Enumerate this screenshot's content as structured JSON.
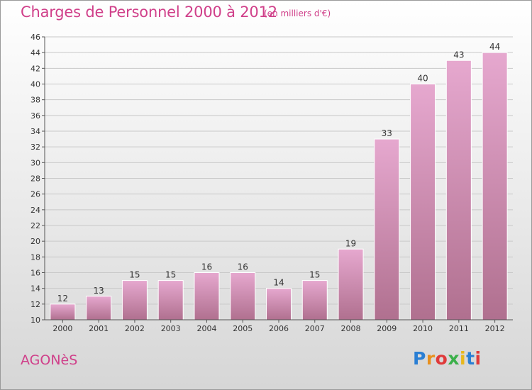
{
  "header": {
    "title": "Charges de Personnel 2000 à 2012",
    "subtitle": "(en milliers d'€)"
  },
  "footer": {
    "commune": "AGONèS",
    "brand": "Proxiti",
    "brand_letters": [
      {
        "ch": "P",
        "color": "#2a7fd4"
      },
      {
        "ch": "r",
        "color": "#e8901e"
      },
      {
        "ch": "o",
        "color": "#e03a3a"
      },
      {
        "ch": "x",
        "color": "#3bb04a"
      },
      {
        "ch": "i",
        "color": "#e8b81e"
      },
      {
        "ch": "t",
        "color": "#2a7fd4"
      },
      {
        "ch": "i",
        "color": "#e03a3a"
      }
    ]
  },
  "colors": {
    "title": "#d0408a",
    "bar_top": "#e6a8cf",
    "bar_bottom": "#b0708f",
    "bar_edge": "#ffffff",
    "grid": "#c9c9c9"
  },
  "chart_data": {
    "type": "bar",
    "title": "Charges de Personnel 2000 à 2012",
    "subtitle": "(en milliers d'€)",
    "categories": [
      "2000",
      "2001",
      "2002",
      "2003",
      "2004",
      "2005",
      "2006",
      "2007",
      "2008",
      "2009",
      "2010",
      "2011",
      "2012"
    ],
    "values": [
      12,
      13,
      15,
      15,
      16,
      16,
      14,
      15,
      19,
      33,
      40,
      43,
      44
    ],
    "ylim": [
      10,
      46
    ],
    "yticks": [
      10,
      12,
      14,
      16,
      18,
      20,
      22,
      24,
      26,
      28,
      30,
      32,
      34,
      36,
      38,
      40,
      42,
      44,
      46
    ],
    "grid": true,
    "xlabel": "",
    "ylabel": ""
  }
}
